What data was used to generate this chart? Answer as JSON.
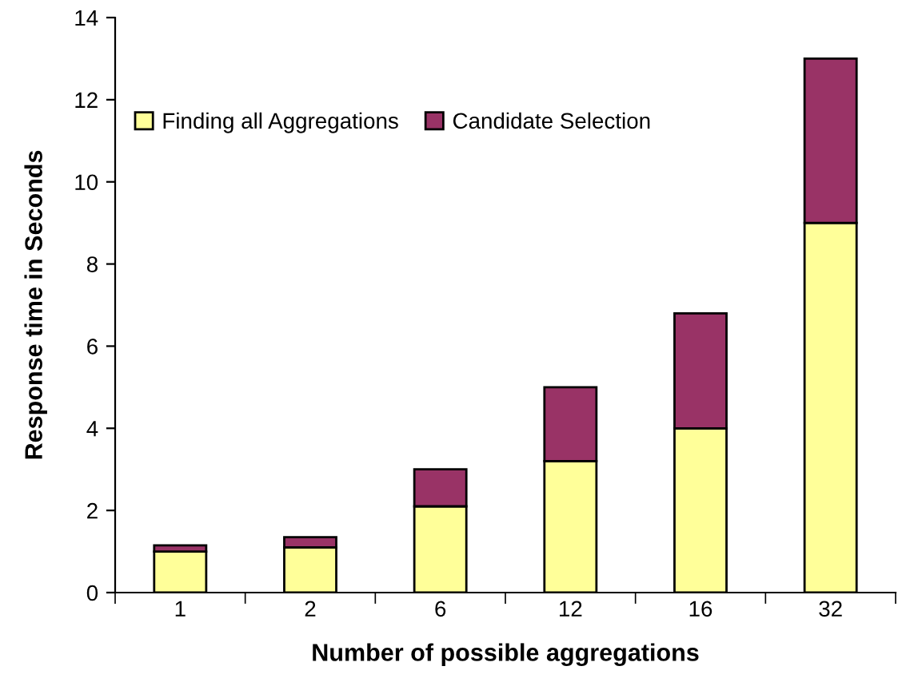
{
  "chart_data": {
    "type": "bar",
    "stacked": true,
    "xlabel": "Number of possible aggregations",
    "ylabel": "Response time in Seconds",
    "categories": [
      "1",
      "2",
      "6",
      "12",
      "16",
      "32"
    ],
    "series": [
      {
        "name": "Finding all Aggregations",
        "color": "#ffff99",
        "values": [
          1.0,
          1.1,
          2.1,
          3.2,
          4.0,
          9.0
        ]
      },
      {
        "name": "Candidate Selection",
        "color": "#993366",
        "values": [
          0.15,
          0.25,
          0.9,
          1.8,
          2.8,
          4.0
        ]
      }
    ],
    "ylim": [
      0,
      14
    ],
    "yticks": [
      0,
      2,
      4,
      6,
      8,
      10,
      12,
      14
    ],
    "grid": false,
    "legend": "top left"
  }
}
